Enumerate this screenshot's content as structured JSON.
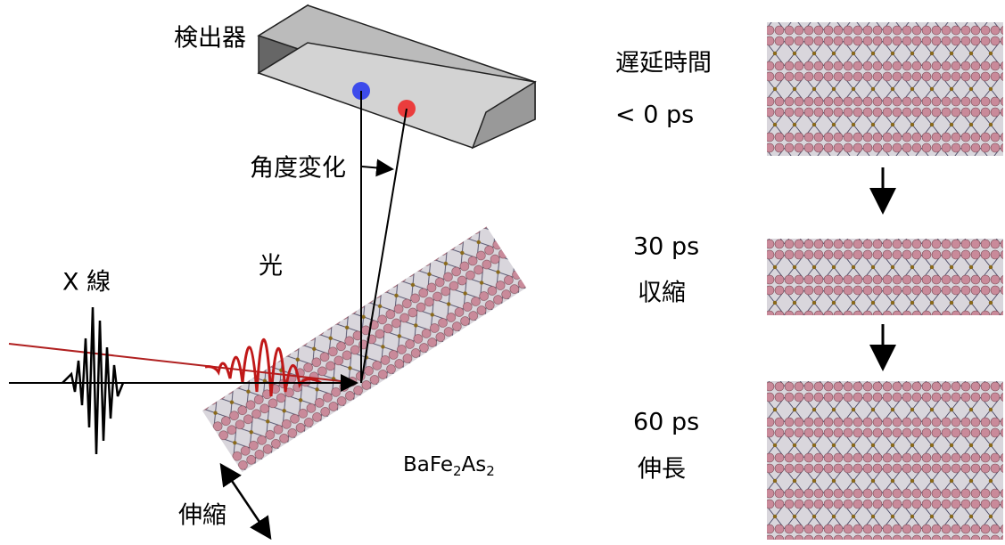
{
  "detector_label": "検出器",
  "angle_label": "角度変化",
  "xray_label": "X 線",
  "light_label": "光",
  "material": {
    "parts": [
      "BaFe",
      "2",
      "As",
      "2"
    ]
  },
  "stretch_label": "伸縮",
  "delay": {
    "title": "遅延時間",
    "steps": [
      {
        "time": "< 0 ps"
      },
      {
        "time": "30 ps",
        "state": "収縮"
      },
      {
        "time": "60 ps",
        "state": "伸長"
      }
    ]
  }
}
